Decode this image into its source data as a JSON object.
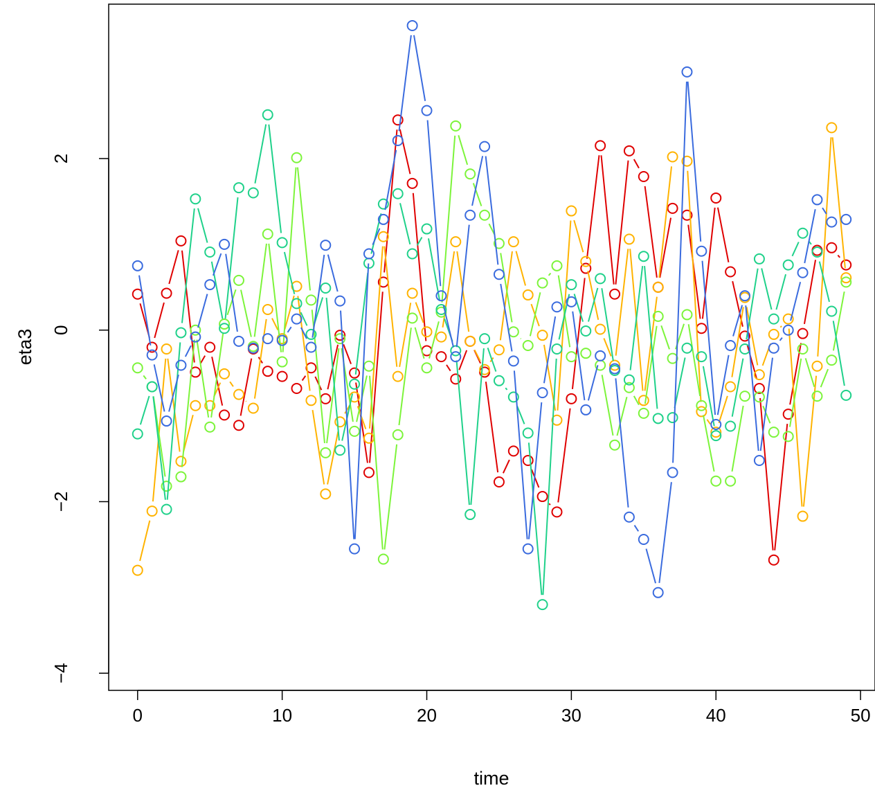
{
  "chart_data": {
    "type": "line",
    "title": "",
    "xlabel": "time",
    "ylabel": "eta3",
    "xlim": [
      -2,
      51
    ],
    "ylim": [
      -4.2,
      3.8
    ],
    "xticks": [
      0,
      10,
      20,
      30,
      40,
      50
    ],
    "yticks": [
      -4,
      -2,
      0,
      2
    ],
    "grid": false,
    "legend": "none",
    "marker": "open-circle",
    "x": [
      0,
      1,
      2,
      3,
      4,
      5,
      6,
      7,
      8,
      9,
      10,
      11,
      12,
      13,
      14,
      15,
      16,
      17,
      18,
      19,
      20,
      21,
      22,
      23,
      24,
      25,
      26,
      27,
      28,
      29,
      30,
      31,
      32,
      33,
      34,
      35,
      36,
      37,
      38,
      39,
      40,
      41,
      42,
      43,
      44,
      45,
      46,
      47,
      48,
      49
    ],
    "series": [
      {
        "color": "#DF0000",
        "values": [
          0.42,
          -0.2,
          0.43,
          1.04,
          -0.49,
          -0.2,
          -0.99,
          -1.11,
          -0.22,
          -0.48,
          -0.54,
          -0.68,
          -0.44,
          -0.8,
          -0.06,
          -0.5,
          -1.66,
          0.56,
          2.45,
          1.71,
          -0.24,
          -0.31,
          -0.57,
          -0.13,
          -0.49,
          -1.77,
          -1.41,
          -1.52,
          -1.94,
          -2.12,
          -0.8,
          0.72,
          2.15,
          0.42,
          2.09,
          1.79,
          0.5,
          1.42,
          1.34,
          0.02,
          1.54,
          0.68,
          -0.07,
          -0.68,
          -2.68,
          -0.98,
          -0.04,
          0.93,
          0.96,
          0.76
        ]
      },
      {
        "color": "#FFB300",
        "values": [
          -2.8,
          -2.11,
          -0.22,
          -1.53,
          -0.88,
          -0.88,
          -0.51,
          -0.75,
          -0.91,
          0.24,
          -0.1,
          0.51,
          -0.82,
          -1.91,
          -1.07,
          -0.78,
          -1.26,
          1.09,
          -0.54,
          0.43,
          -0.02,
          -0.08,
          1.03,
          -0.13,
          -0.46,
          -0.23,
          1.03,
          0.41,
          -0.06,
          -1.05,
          1.39,
          0.8,
          0.01,
          -0.41,
          1.06,
          -0.82,
          0.5,
          2.02,
          1.97,
          -0.95,
          -1.19,
          -0.66,
          0.38,
          -0.52,
          -0.05,
          0.13,
          -2.17,
          -0.42,
          2.36,
          0.61
        ]
      },
      {
        "color": "#7CF43A",
        "values": [
          -0.44,
          -0.66,
          -1.82,
          -1.71,
          0.0,
          -1.13,
          0.07,
          0.58,
          -0.19,
          1.12,
          -0.37,
          2.01,
          0.35,
          -1.43,
          -0.1,
          -1.18,
          -0.42,
          -2.67,
          -1.22,
          0.14,
          -0.44,
          0.21,
          2.38,
          1.82,
          1.34,
          1.01,
          -0.02,
          -0.18,
          0.55,
          0.75,
          -0.31,
          -0.27,
          -0.41,
          -1.34,
          -0.67,
          -0.97,
          0.16,
          -0.33,
          0.18,
          -0.88,
          -1.76,
          -1.76,
          -0.77,
          -0.78,
          -1.19,
          -1.24,
          -0.22,
          -0.77,
          -0.35,
          0.56
        ]
      },
      {
        "color": "#1FD18A",
        "values": [
          -1.21,
          -0.66,
          -2.09,
          -0.03,
          1.53,
          0.91,
          0.02,
          1.66,
          1.6,
          2.51,
          1.02,
          0.31,
          -0.05,
          0.49,
          -1.4,
          -0.63,
          0.78,
          1.47,
          1.59,
          0.89,
          1.18,
          0.24,
          -0.24,
          -2.15,
          -0.1,
          -0.59,
          -0.78,
          -1.2,
          -3.2,
          -0.22,
          0.53,
          -0.01,
          0.6,
          -0.47,
          -0.58,
          0.86,
          -1.03,
          -1.02,
          -0.21,
          -0.31,
          -1.23,
          -1.12,
          -0.22,
          0.83,
          0.13,
          0.76,
          1.13,
          0.91,
          0.22,
          -0.76
        ]
      },
      {
        "color": "#3A6BDE",
        "values": [
          0.75,
          -0.29,
          -1.06,
          -0.41,
          -0.08,
          0.53,
          1.0,
          -0.13,
          -0.21,
          -0.1,
          -0.12,
          0.13,
          -0.2,
          0.99,
          0.34,
          -2.55,
          0.89,
          1.29,
          2.21,
          3.55,
          2.56,
          0.4,
          -0.31,
          1.34,
          2.14,
          0.65,
          -0.36,
          -2.55,
          -0.73,
          0.27,
          0.33,
          -0.93,
          -0.3,
          -0.45,
          -2.18,
          -2.44,
          -3.06,
          -1.66,
          3.01,
          0.92,
          -1.1,
          -0.18,
          0.4,
          -1.52,
          -0.21,
          0.0,
          0.67,
          1.52,
          1.26,
          1.29
        ]
      }
    ]
  }
}
